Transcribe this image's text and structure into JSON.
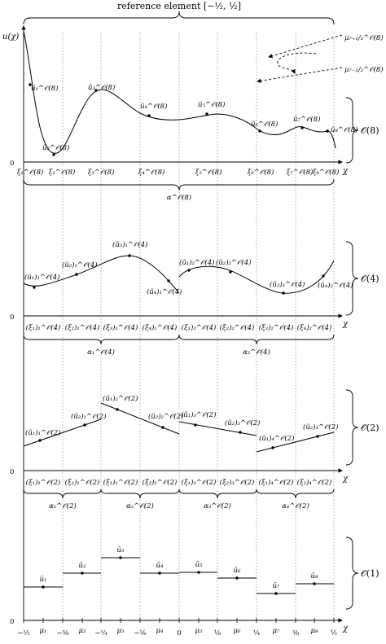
{
  "title": "reference element [−½, ½]",
  "y_axis_label": "u(χ)",
  "x_axis_label": "χ",
  "zero_label": "0",
  "orders": [
    "𝒪(8)",
    "𝒪(4)",
    "𝒪(2)",
    "𝒪(1)"
  ],
  "mu_top": "μ₇₊₁/₂^𝒪(8)",
  "mu_bottom": "μ₇₋₁/₂^𝒪(8)",
  "o8": {
    "points": [
      "ũ₁^𝒪(8)",
      "ũ₂^𝒪(8)",
      "ũ₃^𝒪(8)",
      "ũ₄^𝒪(8)",
      "ũ₅^𝒪(8)",
      "ũ₆^𝒪(8)",
      "ũ₇^𝒪(8)",
      "ũ₈^𝒪(8)"
    ],
    "xi": [
      "ξ₁^𝒪(8)",
      "ξ₂^𝒪(8)",
      "ξ₃^𝒪(8)",
      "ξ₄^𝒪(8)",
      "ξ₅^𝒪(8)",
      "ξ₆^𝒪(8)",
      "ξ₇^𝒪(8)",
      "ξ₈^𝒪(8)"
    ],
    "alpha": "α^𝒪(8)"
  },
  "o4": {
    "points": [
      "(ũ₁)₁^𝒪(4)",
      "(ũ₂)₁^𝒪(4)",
      "(ũ₃)₁^𝒪(4)",
      "(ũ₄)₁^𝒪(4)",
      "(ũ₁)₂^𝒪(4)",
      "(ũ₂)₂^𝒪(4)",
      "(ũ₃)₂^𝒪(4)",
      "(ũ₄)₂^𝒪(4)"
    ],
    "xi": [
      "(ξ₁)₁^𝒪(4)",
      "(ξ₂)₁^𝒪(4)",
      "(ξ₃)₁^𝒪(4)",
      "(ξ₄)₁^𝒪(4)",
      "(ξ₁)₂^𝒪(4)",
      "(ξ₂)₂^𝒪(4)",
      "(ξ₃)₂^𝒪(4)",
      "(ξ₄)₂^𝒪(4)"
    ],
    "alpha": [
      "α₁^𝒪(4)",
      "α₂^𝒪(4)"
    ]
  },
  "o2": {
    "points": [
      "(ũ₁)₁^𝒪(2)",
      "(ũ₂)₁^𝒪(2)",
      "(ũ₁)₂^𝒪(2)",
      "(ũ₂)₂^𝒪(2)",
      "(ũ₁)₃^𝒪(2)",
      "(ũ₂)₃^𝒪(2)",
      "(ũ₁)₄^𝒪(2)",
      "(ũ₂)₄^𝒪(2)"
    ],
    "xi": [
      "(ξ₁)₁^𝒪(2)",
      "(ξ₂)₁^𝒪(2)",
      "(ξ₁)₂^𝒪(2)",
      "(ξ₂)₂^𝒪(2)",
      "(ξ₁)₃^𝒪(2)",
      "(ξ₂)₃^𝒪(2)",
      "(ξ₁)₄^𝒪(2)",
      "(ξ₂)₄^𝒪(2)"
    ],
    "alpha": [
      "α₁^𝒪(2)",
      "α₂^𝒪(2)",
      "α₃^𝒪(2)",
      "α₄^𝒪(2)"
    ]
  },
  "o1": {
    "points": [
      "ū₁",
      "ū₂",
      "ū₃",
      "ū₄",
      "ū₅",
      "ū₆",
      "ū₇",
      "ū₈"
    ]
  },
  "bottom_ticks": [
    "−½",
    "μ₁",
    "−⅜",
    "μ₂",
    "−¼",
    "μ₃",
    "−⅛",
    "μ₄",
    "0",
    "μ₅",
    "⅛",
    "μ₆",
    "¼",
    "μ₇",
    "⅜",
    "μ₈",
    "½"
  ]
}
